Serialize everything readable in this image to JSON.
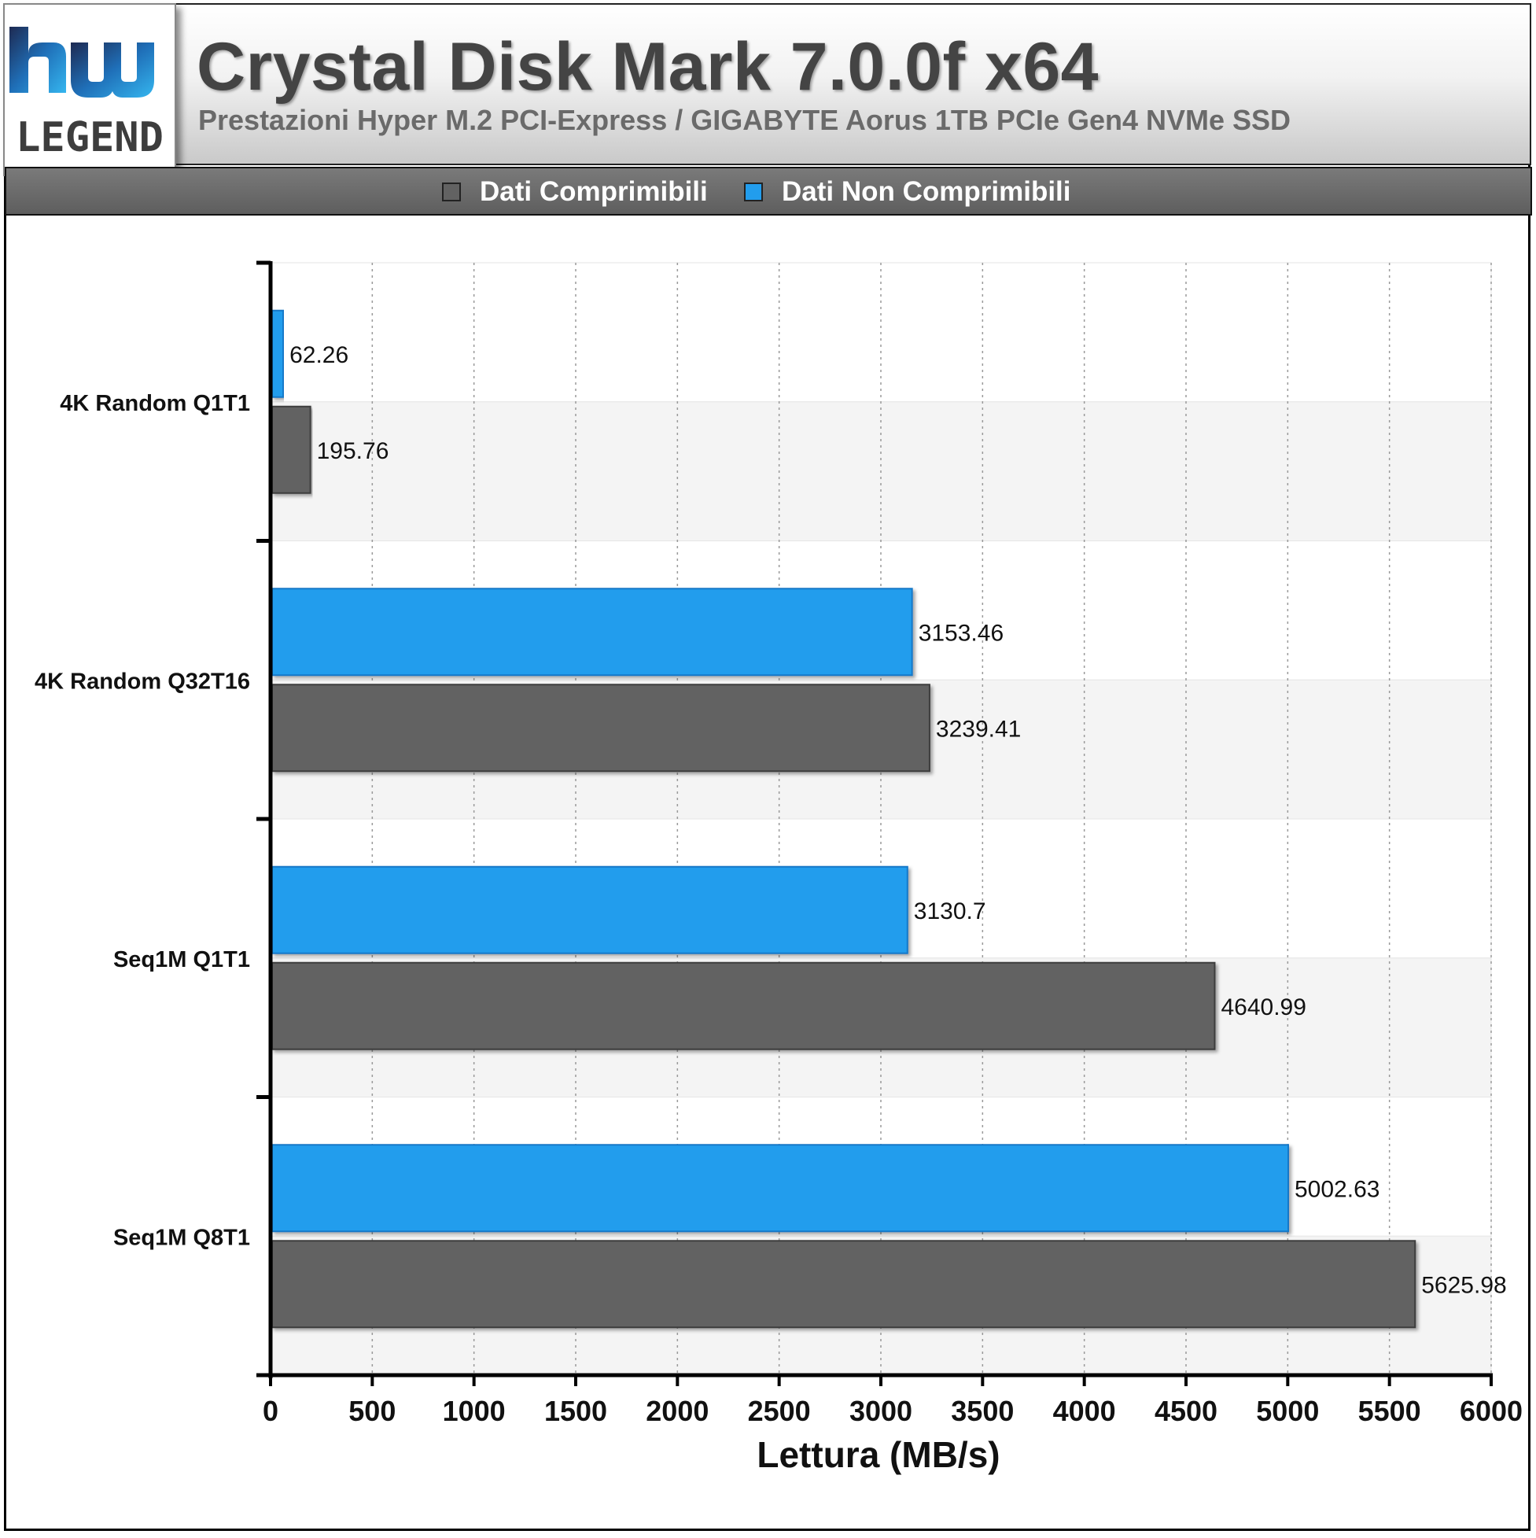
{
  "header": {
    "title": "Crystal Disk Mark 7.0.0f x64",
    "subtitle": "Prestazioni Hyper M.2 PCI-Express / GIGABYTE Aorus 1TB PCIe Gen4 NVMe SSD",
    "logo_text": "LEGEND"
  },
  "legend": [
    {
      "name": "Dati Comprimibili",
      "color": "#626262"
    },
    {
      "name": "Dati Non Comprimibili",
      "color": "#229DED"
    }
  ],
  "chart_data": {
    "type": "bar",
    "orientation": "horizontal",
    "categories": [
      "4K Random Q1T1",
      "4K Random Q32T16",
      "Seq1M Q1T1",
      "Seq1M Q8T1"
    ],
    "series": [
      {
        "name": "Dati Non Comprimibili",
        "color": "#229DED",
        "values": [
          62.26,
          3153.46,
          3130.7,
          5002.63
        ],
        "labels": [
          "62.26",
          "3153.46",
          "3130.7",
          "5002.63"
        ]
      },
      {
        "name": "Dati Comprimibili",
        "color": "#626262",
        "values": [
          195.76,
          3239.41,
          4640.99,
          5625.98
        ],
        "labels": [
          "195.76",
          "3239.41",
          "4640.99",
          "5625.98"
        ]
      }
    ],
    "xlabel": "Lettura (MB/s)",
    "ylabel": "",
    "xlim": [
      0,
      6000
    ],
    "xticks": [
      "0",
      "500",
      "1000",
      "1500",
      "2000",
      "2500",
      "3000",
      "3500",
      "4000",
      "4500",
      "5000",
      "5500",
      "6000"
    ],
    "grid": "vertical dotted",
    "legend_position": "top"
  }
}
